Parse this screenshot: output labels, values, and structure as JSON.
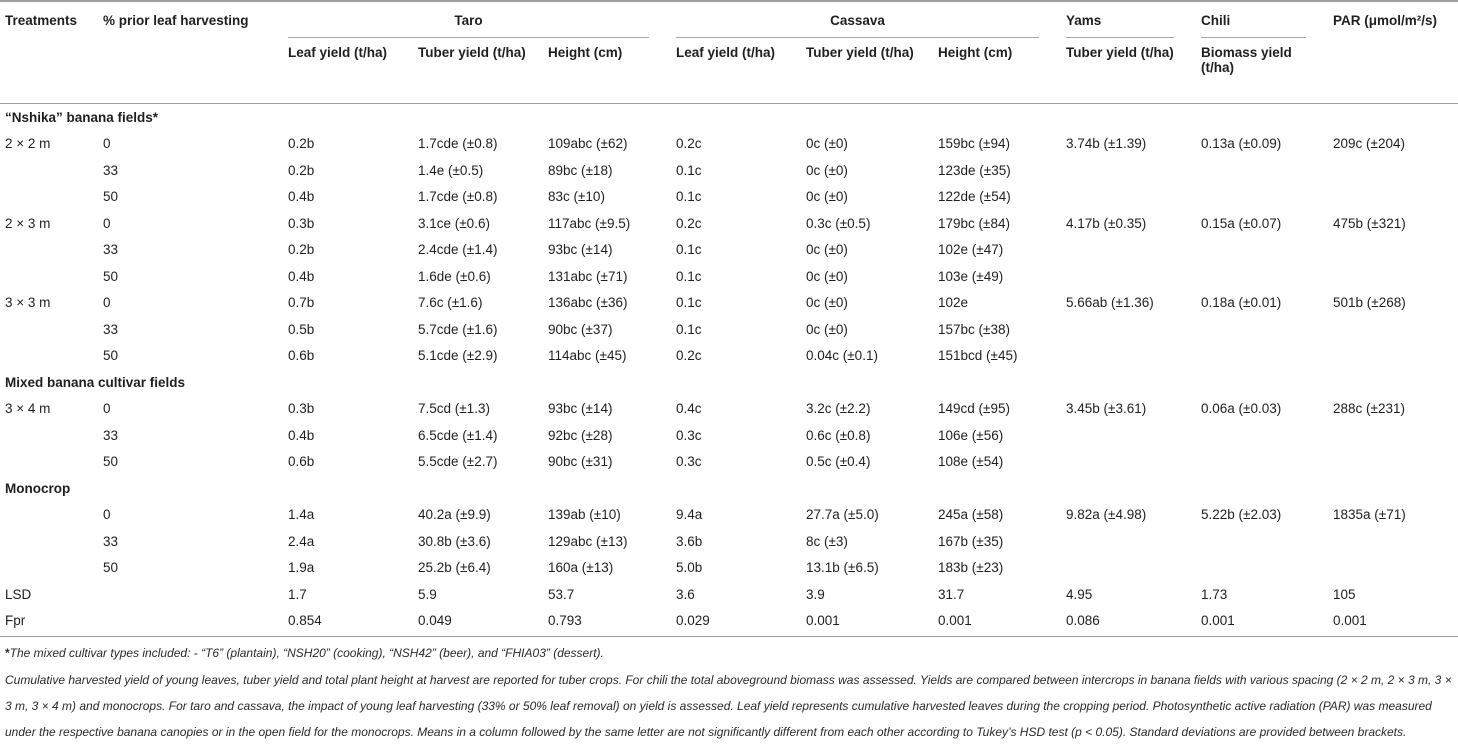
{
  "table": {
    "col_headers": {
      "treatments": "Treatments",
      "pct_prior": "% prior leaf harvesting",
      "par": "PAR (μmol/m²/s)"
    },
    "groups": [
      {
        "label": "Taro",
        "span": 3
      },
      {
        "label": "Cassava",
        "span": 3
      },
      {
        "label": "Yams",
        "span": 1
      },
      {
        "label": "Chili",
        "span": 1
      }
    ],
    "subheaders": [
      "Leaf yield (t/ha)",
      "Tuber yield (t/ha)",
      "Height (cm)",
      "Leaf yield (t/ha)",
      "Tuber yield (t/ha)",
      "Height (cm)",
      "Tuber yield (t/ha)",
      "Biomass yield (t/ha)"
    ],
    "rows": [
      {
        "type": "section",
        "label": "“Nshika” banana fields*"
      },
      {
        "type": "data",
        "treatment": "2 × 2 m",
        "pct": "0",
        "cells": [
          "0.2b",
          "1.7cde (±0.8)",
          "109abc (±62)",
          "0.2c",
          "0c (±0)",
          "159bc (±94)",
          "3.74b (±1.39)",
          "0.13a (±0.09)",
          "209c (±204)"
        ]
      },
      {
        "type": "data",
        "treatment": "",
        "pct": "33",
        "cells": [
          "0.2b",
          "1.4e (±0.5)",
          "89bc (±18)",
          "0.1c",
          "0c (±0)",
          "123de (±35)",
          "",
          "",
          ""
        ]
      },
      {
        "type": "data",
        "treatment": "",
        "pct": "50",
        "cells": [
          "0.4b",
          "1.7cde (±0.8)",
          "83c (±10)",
          "0.1c",
          "0c (±0)",
          "122de (±54)",
          "",
          "",
          ""
        ]
      },
      {
        "type": "data",
        "treatment": "2 × 3 m",
        "pct": "0",
        "cells": [
          "0.3b",
          "3.1ce (±0.6)",
          "117abc (±9.5)",
          "0.2c",
          "0.3c (±0.5)",
          "179bc (±84)",
          "4.17b (±0.35)",
          "0.15a (±0.07)",
          "475b (±321)"
        ]
      },
      {
        "type": "data",
        "treatment": "",
        "pct": "33",
        "cells": [
          "0.2b",
          "2.4cde (±1.4)",
          "93bc (±14)",
          "0.1c",
          "0c (±0)",
          "102e (±47)",
          "",
          "",
          ""
        ]
      },
      {
        "type": "data",
        "treatment": "",
        "pct": "50",
        "cells": [
          "0.4b",
          "1.6de (±0.6)",
          "131abc (±71)",
          "0.1c",
          "0c (±0)",
          "103e (±49)",
          "",
          "",
          ""
        ]
      },
      {
        "type": "data",
        "treatment": "3 × 3 m",
        "pct": "0",
        "cells": [
          "0.7b",
          "7.6c (±1.6)",
          "136abc (±36)",
          "0.1c",
          "0c (±0)",
          "102e",
          "5.66ab (±1.36)",
          "0.18a (±0.01)",
          "501b (±268)"
        ]
      },
      {
        "type": "data",
        "treatment": "",
        "pct": "33",
        "cells": [
          "0.5b",
          "5.7cde (±1.6)",
          "90bc (±37)",
          "0.1c",
          "0c (±0)",
          "157bc (±38)",
          "",
          "",
          ""
        ]
      },
      {
        "type": "data",
        "treatment": "",
        "pct": "50",
        "cells": [
          "0.6b",
          "5.1cde (±2.9)",
          "114abc (±45)",
          "0.2c",
          "0.04c (±0.1)",
          "151bcd (±45)",
          "",
          "",
          ""
        ]
      },
      {
        "type": "section",
        "label": "Mixed banana cultivar fields"
      },
      {
        "type": "data",
        "treatment": "3 × 4 m",
        "pct": "0",
        "cells": [
          "0.3b",
          "7.5cd (±1.3)",
          "93bc (±14)",
          "0.4c",
          "3.2c (±2.2)",
          "149cd (±95)",
          "3.45b (±3.61)",
          "0.06a (±0.03)",
          "288c (±231)"
        ]
      },
      {
        "type": "data",
        "treatment": "",
        "pct": "33",
        "cells": [
          "0.4b",
          "6.5cde (±1.4)",
          "92bc (±28)",
          "0.3c",
          "0.6c (±0.8)",
          "106e (±56)",
          "",
          "",
          ""
        ]
      },
      {
        "type": "data",
        "treatment": "",
        "pct": "50",
        "cells": [
          "0.6b",
          "5.5cde (±2.7)",
          "90bc (±31)",
          "0.3c",
          "0.5c (±0.4)",
          "108e (±54)",
          "",
          "",
          ""
        ]
      },
      {
        "type": "section",
        "label": "Monocrop"
      },
      {
        "type": "data",
        "treatment": "",
        "pct": "0",
        "cells": [
          "1.4a",
          "40.2a (±9.9)",
          "139ab (±10)",
          "9.4a",
          "27.7a (±5.0)",
          "245a (±58)",
          "9.82a (±4.98)",
          "5.22b (±2.03)",
          "1835a (±71)"
        ]
      },
      {
        "type": "data",
        "treatment": "",
        "pct": "33",
        "cells": [
          "2.4a",
          "30.8b (±3.6)",
          "129abc (±13)",
          "3.6b",
          "8c (±3)",
          "167b (±35)",
          "",
          "",
          ""
        ]
      },
      {
        "type": "data",
        "treatment": "",
        "pct": "50",
        "cells": [
          "1.9a",
          "25.2b (±6.4)",
          "160a (±13)",
          "5.0b",
          "13.1b (±6.5)",
          "183b (±23)",
          "",
          "",
          ""
        ]
      },
      {
        "type": "data",
        "treatment": "LSD",
        "pct": "",
        "cells": [
          "1.7",
          "5.9",
          "53.7",
          "3.6",
          "3.9",
          "31.7",
          "4.95",
          "1.73",
          "105"
        ]
      },
      {
        "type": "data",
        "treatment": "Fpr",
        "pct": "",
        "cells": [
          "0.854",
          "0.049",
          "0.793",
          "0.029",
          "0.001",
          "0.001",
          "0.086",
          "0.001",
          "0.001"
        ]
      }
    ]
  },
  "footnotes": {
    "first_marker": "*",
    "first_text": "The mixed cultivar types included: - “T6” (plantain), “NSH20” (cooking), “NSH42” (beer), and “FHIA03” (dessert).",
    "second_text": "Cumulative harvested yield of young leaves, tuber yield and total plant height at harvest are reported for tuber crops. For chili the total aboveground biomass was assessed. Yields are compared between intercrops in banana fields with various spacing (2 × 2 m, 2 × 3 m, 3 × 3 m, 3 × 4 m) and monocrops. For taro and cassava, the impact of young leaf harvesting (33% or 50% leaf removal) on yield is assessed. Leaf yield represents cumulative harvested leaves during the cropping period. Photosynthetic active radiation (PAR) was measured under the respective banana canopies or in the open field for the monocrops. Means in a column followed by the same letter are not significantly different from each other according to Tukey’s HSD test (p < 0.05). Standard deviations are provided between brackets."
  },
  "colors": {
    "rule": "#9e9e9e",
    "text": "#1f1f1f"
  }
}
